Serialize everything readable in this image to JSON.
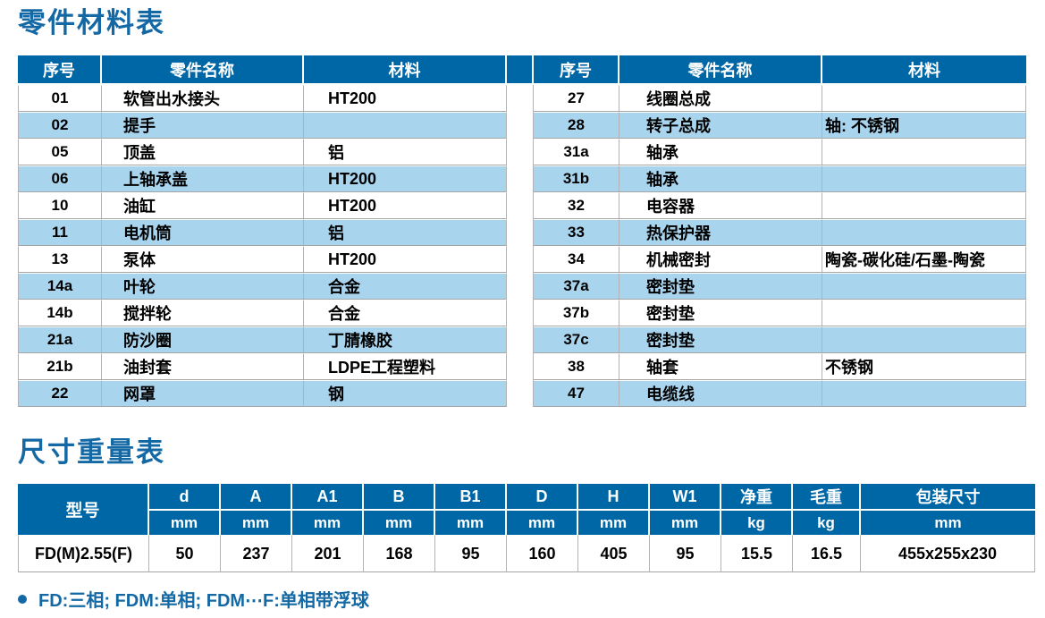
{
  "colors": {
    "header_blue": "#0067a6",
    "row_alt_blue": "#a9d4ee",
    "title_blue": "#1469a4",
    "border_gray": "#a5a5a5",
    "text_black": "#000000"
  },
  "parts_section": {
    "title": "零件材料表",
    "columns": [
      "序号",
      "零件名称",
      "材料"
    ],
    "left_rows": [
      [
        "01",
        "软管出水接头",
        "HT200"
      ],
      [
        "02",
        "提手",
        ""
      ],
      [
        "05",
        "顶盖",
        "铝"
      ],
      [
        "06",
        "上轴承盖",
        "HT200"
      ],
      [
        "10",
        "油缸",
        "HT200"
      ],
      [
        "11",
        "电机筒",
        "铝"
      ],
      [
        "13",
        "泵体",
        "HT200"
      ],
      [
        "14a",
        "叶轮",
        "合金"
      ],
      [
        "14b",
        "搅拌轮",
        "合金"
      ],
      [
        "21a",
        "防沙圈",
        "丁腈橡胶"
      ],
      [
        "21b",
        "油封套",
        "LDPE工程塑料"
      ],
      [
        "22",
        "网罩",
        "钢"
      ]
    ],
    "right_rows": [
      [
        "27",
        "线圈总成",
        ""
      ],
      [
        "28",
        "转子总成",
        "轴: 不锈钢"
      ],
      [
        "31a",
        "轴承",
        ""
      ],
      [
        "31b",
        "轴承",
        ""
      ],
      [
        "32",
        "电容器",
        ""
      ],
      [
        "33",
        "热保护器",
        ""
      ],
      [
        "34",
        "机械密封",
        "陶瓷-碳化硅/石墨-陶瓷"
      ],
      [
        "37a",
        "密封垫",
        ""
      ],
      [
        "37b",
        "密封垫",
        ""
      ],
      [
        "37c",
        "密封垫",
        ""
      ],
      [
        "38",
        "轴套",
        "不锈钢"
      ],
      [
        "47",
        "电缆线",
        ""
      ]
    ]
  },
  "dims_section": {
    "title": "尺寸重量表",
    "model_header": "型号",
    "columns": [
      {
        "label": "d",
        "unit": "mm"
      },
      {
        "label": "A",
        "unit": "mm"
      },
      {
        "label": "A1",
        "unit": "mm"
      },
      {
        "label": "B",
        "unit": "mm"
      },
      {
        "label": "B1",
        "unit": "mm"
      },
      {
        "label": "D",
        "unit": "mm"
      },
      {
        "label": "H",
        "unit": "mm"
      },
      {
        "label": "W1",
        "unit": "mm"
      },
      {
        "label": "净重",
        "unit": "kg"
      },
      {
        "label": "毛重",
        "unit": "kg"
      },
      {
        "label": "包装尺寸",
        "unit": "mm"
      }
    ],
    "row": {
      "model": "FD(M)2.55(F)",
      "values": [
        "50",
        "237",
        "201",
        "168",
        "95",
        "160",
        "405",
        "95",
        "15.5",
        "16.5",
        "455x255x230"
      ]
    }
  },
  "footnote": {
    "text": "FD:三相; FDM:单相; FDM⋯F:单相带浮球"
  }
}
